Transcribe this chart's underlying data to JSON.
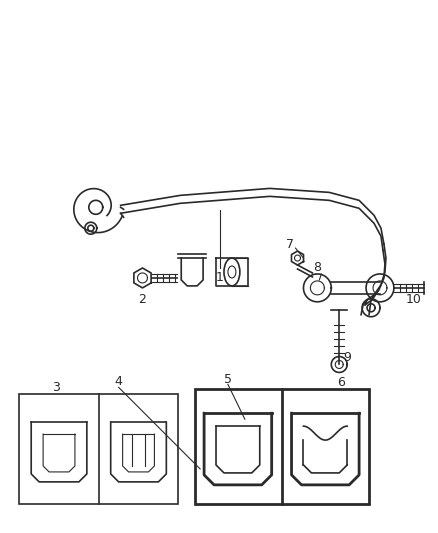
{
  "background_color": "#ffffff",
  "line_color": "#2a2a2a",
  "lw": 1.2,
  "lw_thin": 0.8,
  "lw_thick": 2.0
}
